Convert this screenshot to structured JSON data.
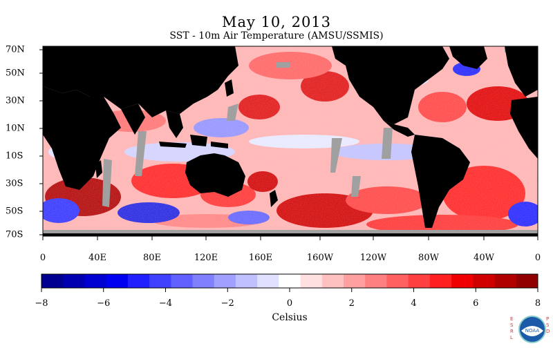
{
  "title": "May 10, 2013",
  "subtitle": "SST - 10m Air Temperature (AMSU/SSMIS)",
  "lat_labels": [
    "70N",
    "50N",
    "30N",
    "10N",
    "10S",
    "30S",
    "50S",
    "70S"
  ],
  "lon_labels": [
    "0",
    "40E",
    "80E",
    "120E",
    "160E",
    "160W",
    "120W",
    "80W",
    "40W",
    "0"
  ],
  "colorbar": {
    "ticks": [
      "−8",
      "−6",
      "−4",
      "−2",
      "0",
      "2",
      "4",
      "6",
      "8"
    ],
    "label": "Celsius",
    "min": -8,
    "max": 8,
    "colors": [
      "#000090",
      "#0000b0",
      "#0000d0",
      "#0000f0",
      "#2020ff",
      "#4040ff",
      "#6060ff",
      "#8080ff",
      "#a0a0ff",
      "#c0c0ff",
      "#e0e0ff",
      "#ffffff",
      "#ffe0e0",
      "#ffc0c0",
      "#ffa0a0",
      "#ff8080",
      "#ff6060",
      "#ff4040",
      "#ff2020",
      "#f00000",
      "#d00000",
      "#b00000",
      "#900000"
    ]
  },
  "colors": {
    "land": "#000000",
    "missing": "#a0a0a0"
  },
  "logo": {
    "left_text": "ESRL",
    "right_text": "PSD",
    "badge": "NOAA"
  }
}
